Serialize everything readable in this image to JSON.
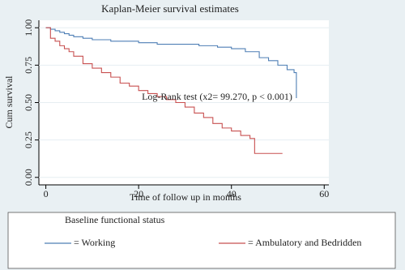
{
  "chart_data": {
    "type": "step-line",
    "title": "Kaplan-Meier survival estimates",
    "xlabel": "Time of follow up in months",
    "ylabel": "Cum survival",
    "annotation": "Log-Rank test (x2= 99.270, p < 0.001)",
    "annotation_color": "#d03030",
    "xlim": [
      -1.5,
      61
    ],
    "ylim": [
      -0.05,
      1.05
    ],
    "xticks": [
      0,
      20,
      40,
      60
    ],
    "yticks": [
      {
        "value": 0,
        "label": "0.00"
      },
      {
        "value": 0.25,
        "label": "0.25"
      },
      {
        "value": 0.5,
        "label": "0.50"
      },
      {
        "value": 0.75,
        "label": "0.75"
      },
      {
        "value": 1,
        "label": "1.00"
      }
    ],
    "grid": true,
    "legend_position": "bottom",
    "legend_title": "Baseline functional status",
    "series": [
      {
        "name": "= Working",
        "color": "#4f7fb5",
        "x": [
          0,
          1,
          2,
          3,
          4,
          5,
          6,
          8,
          10,
          14,
          20,
          24,
          28,
          33,
          37,
          40,
          43,
          46,
          48,
          50,
          52,
          53.5,
          54
        ],
        "values": [
          1,
          0.99,
          0.98,
          0.97,
          0.96,
          0.95,
          0.94,
          0.93,
          0.92,
          0.91,
          0.9,
          0.89,
          0.89,
          0.88,
          0.87,
          0.86,
          0.84,
          0.8,
          0.78,
          0.75,
          0.72,
          0.7,
          0.53
        ]
      },
      {
        "name": "= Ambulatory and Bedridden",
        "color": "#c85050",
        "x": [
          0,
          1,
          2,
          3,
          4,
          5,
          6,
          8,
          10,
          12,
          14,
          16,
          18,
          20,
          22,
          24,
          26,
          28,
          30,
          32,
          34,
          36,
          38,
          40,
          42,
          44,
          45,
          51
        ],
        "values": [
          1,
          0.93,
          0.91,
          0.88,
          0.86,
          0.84,
          0.81,
          0.76,
          0.73,
          0.7,
          0.67,
          0.63,
          0.61,
          0.58,
          0.56,
          0.54,
          0.52,
          0.5,
          0.47,
          0.43,
          0.4,
          0.36,
          0.33,
          0.31,
          0.28,
          0.26,
          0.16,
          0.16
        ]
      }
    ]
  }
}
